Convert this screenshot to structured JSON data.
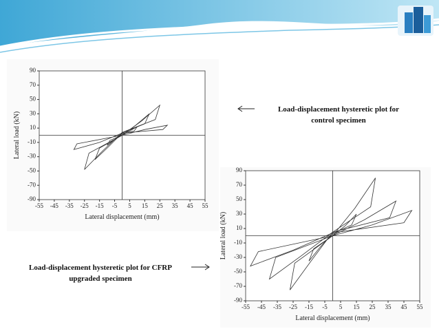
{
  "captions": {
    "control": [
      "Load-displacement hysteretic plot for",
      "control specimen"
    ],
    "cfrp": [
      "Load-displacement hysteretic plot for CFRP",
      "upgraded specimen"
    ]
  },
  "chart_data": [
    {
      "type": "line",
      "x_label": "Lateral displacement (mm)",
      "y_label": "Lateral load (kN)",
      "xlim": [
        -55,
        55
      ],
      "ylim": [
        -90,
        90
      ],
      "xticks": [
        -55,
        -45,
        -35,
        -25,
        -15,
        -5,
        5,
        15,
        25,
        35,
        45,
        55
      ],
      "yticks": [
        -90,
        -70,
        -50,
        -30,
        -10,
        10,
        30,
        50,
        70,
        90
      ],
      "series": [
        {
          "color": "#333333",
          "x": [
            0,
            5,
            10,
            8,
            0,
            -5,
            -10,
            -8,
            0
          ],
          "values": [
            0,
            6,
            12,
            6,
            2,
            -6,
            -14,
            -7,
            0
          ]
        },
        {
          "color": "#333333",
          "x": [
            0,
            9,
            18,
            15,
            0,
            -9,
            -18,
            -15,
            0
          ],
          "values": [
            0,
            14,
            30,
            16,
            3,
            -16,
            -34,
            -18,
            0
          ]
        },
        {
          "color": "#333333",
          "x": [
            0,
            13,
            25,
            22,
            0,
            -13,
            -25,
            -22,
            0
          ],
          "values": [
            0,
            20,
            42,
            22,
            4,
            -22,
            -48,
            -25,
            0
          ]
        },
        {
          "color": "#333333",
          "x": [
            0,
            15,
            30,
            27,
            0,
            -15,
            -32,
            -30,
            0
          ],
          "values": [
            0,
            8,
            14,
            8,
            3,
            -10,
            -20,
            -12,
            0
          ]
        }
      ]
    },
    {
      "type": "line",
      "x_label": "Lateral displacement (mm)",
      "y_label": "Lateral load (kN)",
      "xlim": [
        -55,
        55
      ],
      "ylim": [
        -90,
        90
      ],
      "xticks": [
        -55,
        -45,
        -35,
        -25,
        -15,
        -5,
        5,
        15,
        25,
        35,
        45,
        55
      ],
      "yticks": [
        -90,
        -70,
        -50,
        -30,
        -10,
        10,
        30,
        50,
        70,
        90
      ],
      "series": [
        {
          "color": "#333333",
          "x": [
            0,
            8,
            15,
            12,
            0,
            -8,
            -15,
            -12,
            0
          ],
          "values": [
            0,
            14,
            30,
            15,
            3,
            -16,
            -35,
            -18,
            0
          ]
        },
        {
          "color": "#333333",
          "x": [
            0,
            14,
            27,
            24,
            0,
            -14,
            -27,
            -24,
            0
          ],
          "values": [
            0,
            38,
            80,
            40,
            5,
            -36,
            -75,
            -38,
            0
          ]
        },
        {
          "color": "#333333",
          "x": [
            0,
            20,
            40,
            36,
            0,
            -20,
            -40,
            -36,
            0
          ],
          "values": [
            0,
            22,
            48,
            25,
            5,
            -28,
            -60,
            -30,
            0
          ]
        },
        {
          "color": "#333333",
          "x": [
            0,
            25,
            50,
            45,
            0,
            -25,
            -52,
            -47,
            0
          ],
          "values": [
            0,
            15,
            35,
            18,
            4,
            -20,
            -42,
            -22,
            0
          ]
        }
      ]
    }
  ]
}
